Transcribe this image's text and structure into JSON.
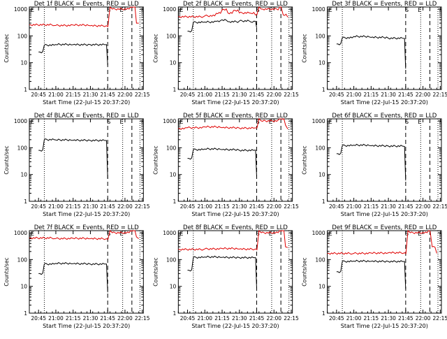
{
  "colors": {
    "background": "#ffffff",
    "axes": "#000000",
    "events": "#000000",
    "lld": "#e00000"
  },
  "chart_data": [
    {
      "type": "line",
      "detector": "1f",
      "title": "Det 1f BLACK = Events, RED = LLD",
      "xlabel": "Start Time (22-Jul-15 20:37:20)",
      "ylabel": "Counts/sec",
      "xticks": [
        "20:45",
        "21:00",
        "21:15",
        "21:30",
        "21:45",
        "22:00",
        "22:15"
      ],
      "yticks": [
        "1",
        "10",
        "100",
        "1000"
      ],
      "y_scale": "log",
      "ylim": [
        1,
        1200
      ],
      "markers": {
        "start": "E",
        "s": "S",
        "end": "E"
      },
      "series": [
        {
          "name": "Events",
          "x": [
            "20:45",
            "20:50",
            "21:00",
            "21:15",
            "21:30",
            "21:44",
            "21:45"
          ],
          "values": [
            25,
            45,
            48,
            47,
            47,
            47,
            8
          ]
        },
        {
          "name": "LLD",
          "x": [
            "20:37",
            "21:00",
            "21:15",
            "21:30",
            "21:44",
            "21:47",
            "21:49",
            "22:05",
            "22:10",
            "22:12"
          ],
          "values": [
            260,
            245,
            255,
            238,
            240,
            1400,
            1000,
            1400,
            300,
            300
          ]
        }
      ]
    },
    {
      "type": "line",
      "detector": "2f",
      "title": "Det 2f BLACK = Events, RED = LLD",
      "xlabel": "Start Time (22-Jul-15 20:37:20)",
      "ylabel": "Counts/sec",
      "xticks": [
        "20:45",
        "21:00",
        "21:15",
        "21:30",
        "21:45",
        "22:00",
        "22:15"
      ],
      "yticks": [
        "1",
        "10",
        "100",
        "1000"
      ],
      "y_scale": "log",
      "ylim": [
        1,
        1200
      ],
      "markers": {
        "start": "E",
        "s": "S",
        "end": "E"
      },
      "series": [
        {
          "name": "Events",
          "x": [
            "20:45",
            "20:50",
            "21:00",
            "21:10",
            "21:15",
            "21:20",
            "21:30",
            "21:40",
            "21:44",
            "21:45"
          ],
          "values": [
            150,
            320,
            330,
            350,
            400,
            340,
            360,
            330,
            350,
            200
          ]
        },
        {
          "name": "LLD",
          "x": [
            "20:37",
            "21:00",
            "21:10",
            "21:15",
            "21:20",
            "21:25",
            "21:30",
            "21:40",
            "21:44",
            "21:47",
            "21:49",
            "22:05",
            "22:08",
            "22:12"
          ],
          "values": [
            520,
            560,
            700,
            950,
            720,
            900,
            720,
            700,
            600,
            1400,
            1000,
            1400,
            600,
            500
          ]
        }
      ]
    },
    {
      "type": "line",
      "detector": "3f",
      "title": "Det 3f BLACK = Events, RED = LLD",
      "xlabel": "Start Time (22-Jul-15 20:37:20)",
      "ylabel": "Counts/sec",
      "xticks": [
        "20:45",
        "21:00",
        "21:15",
        "21:30",
        "21:45",
        "22:00",
        "22:15"
      ],
      "yticks": [
        "1",
        "10",
        "100",
        "1000"
      ],
      "y_scale": "log",
      "ylim": [
        1,
        1200
      ],
      "markers": {
        "start": "E",
        "s": "S",
        "end": "E"
      },
      "series": [
        {
          "name": "Events",
          "x": [
            "20:45",
            "20:50",
            "21:00",
            "21:15",
            "21:30",
            "21:44",
            "21:45"
          ],
          "values": [
            50,
            85,
            95,
            88,
            82,
            80,
            6
          ]
        }
      ]
    },
    {
      "type": "line",
      "detector": "4f",
      "title": "Det 4f BLACK = Events, RED = LLD",
      "xlabel": "Start Time (22-Jul-15 20:37:20)",
      "ylabel": "Counts/sec",
      "xticks": [
        "20:45",
        "21:00",
        "21:15",
        "21:30",
        "21:45",
        "22:00",
        "22:15"
      ],
      "yticks": [
        "1",
        "10",
        "100",
        "1000"
      ],
      "y_scale": "log",
      "ylim": [
        1,
        1200
      ],
      "markers": {
        "start": "E",
        "s": "S",
        "end": "E"
      },
      "series": [
        {
          "name": "Events",
          "x": [
            "20:45",
            "20:50",
            "21:00",
            "21:15",
            "21:30",
            "21:44",
            "21:45"
          ],
          "values": [
            80,
            200,
            195,
            190,
            188,
            185,
            7
          ]
        }
      ]
    },
    {
      "type": "line",
      "detector": "5f",
      "title": "Det 5f BLACK = Events, RED = LLD",
      "xlabel": "Start Time (22-Jul-15 20:37:20)",
      "ylabel": "Counts/sec",
      "xticks": [
        "20:45",
        "21:00",
        "21:15",
        "21:30",
        "21:45",
        "22:00",
        "22:15"
      ],
      "yticks": [
        "1",
        "10",
        "100",
        "1000"
      ],
      "y_scale": "log",
      "ylim": [
        1,
        1200
      ],
      "markers": {
        "start": "E",
        "s": "S",
        "end": "E"
      },
      "series": [
        {
          "name": "Events",
          "x": [
            "20:45",
            "20:50",
            "21:00",
            "21:15",
            "21:30",
            "21:44",
            "21:45"
          ],
          "values": [
            40,
            85,
            90,
            85,
            80,
            82,
            8
          ]
        },
        {
          "name": "LLD",
          "x": [
            "20:37",
            "20:45",
            "21:00",
            "21:15",
            "21:30",
            "21:44",
            "21:47",
            "21:49",
            "22:05",
            "22:10",
            "22:12"
          ],
          "values": [
            520,
            560,
            600,
            560,
            540,
            550,
            1400,
            1000,
            1400,
            700,
            500
          ]
        }
      ]
    },
    {
      "type": "line",
      "detector": "6f",
      "title": "Det 6f BLACK = Events, RED = LLD",
      "xlabel": "Start Time (22-Jul-15 20:37:20)",
      "ylabel": "Counts/sec",
      "xticks": [
        "20:45",
        "21:00",
        "21:15",
        "21:30",
        "21:45",
        "22:00",
        "22:15"
      ],
      "yticks": [
        "1",
        "10",
        "100",
        "1000"
      ],
      "y_scale": "log",
      "ylim": [
        1,
        1200
      ],
      "markers": {
        "start": "E",
        "s": "S",
        "end": "E"
      },
      "series": [
        {
          "name": "Events",
          "x": [
            "20:45",
            "20:50",
            "21:00",
            "21:15",
            "21:30",
            "21:44",
            "21:45"
          ],
          "values": [
            60,
            120,
            125,
            118,
            115,
            112,
            6
          ]
        }
      ]
    },
    {
      "type": "line",
      "detector": "7f",
      "title": "Det 7f BLACK = Events, RED = LLD",
      "xlabel": "Start Time (22-Jul-15 20:37:20)",
      "ylabel": "Counts/sec",
      "xticks": [
        "20:45",
        "21:00",
        "21:15",
        "21:30",
        "21:45",
        "22:00",
        "22:15"
      ],
      "yticks": [
        "1",
        "10",
        "100",
        "1000"
      ],
      "y_scale": "log",
      "ylim": [
        1,
        1200
      ],
      "markers": {
        "start": "E",
        "s": "S",
        "end": "E"
      },
      "series": [
        {
          "name": "Events",
          "x": [
            "20:45",
            "20:50",
            "21:00",
            "21:15",
            "21:30",
            "21:44",
            "21:45"
          ],
          "values": [
            30,
            68,
            72,
            70,
            68,
            68,
            6
          ]
        },
        {
          "name": "LLD",
          "x": [
            "20:37",
            "21:00",
            "21:15",
            "21:30",
            "21:44",
            "21:47",
            "21:49",
            "22:05",
            "22:10",
            "22:12"
          ],
          "values": [
            640,
            610,
            620,
            600,
            600,
            1400,
            1000,
            1400,
            700,
            600
          ]
        }
      ]
    },
    {
      "type": "line",
      "detector": "8f",
      "title": "Det 8f BLACK = Events, RED = LLD",
      "xlabel": "Start Time (22-Jul-15 20:37:20)",
      "ylabel": "Counts/sec",
      "xticks": [
        "20:45",
        "21:00",
        "21:15",
        "21:30",
        "21:45",
        "22:00",
        "22:15"
      ],
      "yticks": [
        "1",
        "10",
        "100",
        "1000"
      ],
      "y_scale": "log",
      "ylim": [
        1,
        1200
      ],
      "markers": {
        "start": "E",
        "s": "S",
        "end": "E"
      },
      "series": [
        {
          "name": "Events",
          "x": [
            "20:45",
            "20:50",
            "21:00",
            "21:15",
            "21:30",
            "21:44",
            "21:45"
          ],
          "values": [
            40,
            120,
            125,
            120,
            118,
            118,
            8
          ]
        },
        {
          "name": "LLD",
          "x": [
            "20:37",
            "21:00",
            "21:15",
            "21:30",
            "21:44",
            "21:47",
            "21:49",
            "22:05",
            "22:10",
            "22:12"
          ],
          "values": [
            240,
            250,
            260,
            245,
            250,
            1400,
            1000,
            1400,
            300,
            280
          ]
        }
      ]
    },
    {
      "type": "line",
      "detector": "9f",
      "title": "Det 9f BLACK = Events, RED = LLD",
      "xlabel": "Start Time (22-Jul-15 20:37:20)",
      "ylabel": "Counts/sec",
      "xticks": [
        "20:45",
        "21:00",
        "21:15",
        "21:30",
        "21:45",
        "22:00",
        "22:15"
      ],
      "yticks": [
        "1",
        "10",
        "100",
        "1000"
      ],
      "y_scale": "log",
      "ylim": [
        1,
        1200
      ],
      "markers": {
        "start": "E",
        "s": "S",
        "end": "E"
      },
      "series": [
        {
          "name": "Events",
          "x": [
            "20:45",
            "20:50",
            "21:00",
            "21:15",
            "21:30",
            "21:44",
            "21:45"
          ],
          "values": [
            35,
            85,
            88,
            86,
            85,
            85,
            8
          ]
        },
        {
          "name": "LLD",
          "x": [
            "20:37",
            "21:00",
            "21:15",
            "21:30",
            "21:44",
            "21:47",
            "21:49",
            "22:05",
            "22:08",
            "22:12"
          ],
          "values": [
            170,
            170,
            175,
            180,
            180,
            1400,
            1000,
            1400,
            300,
            170
          ]
        }
      ]
    }
  ]
}
